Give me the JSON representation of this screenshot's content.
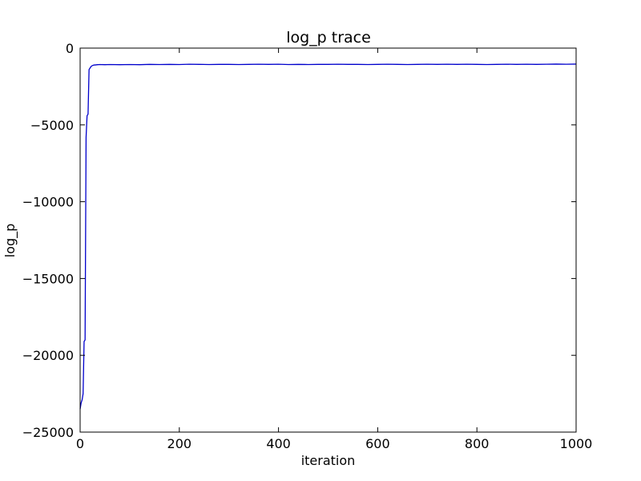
{
  "chart_data": {
    "type": "line",
    "title": "log_p trace",
    "xlabel": "iteration",
    "ylabel": "log_p",
    "xlim": [
      0,
      1000
    ],
    "ylim": [
      -25000,
      0
    ],
    "xticks": [
      0,
      200,
      400,
      600,
      800,
      1000
    ],
    "yticks": [
      0,
      -5000,
      -10000,
      -15000,
      -20000,
      -25000
    ],
    "xtick_labels": [
      "0",
      "200",
      "400",
      "600",
      "800",
      "1000"
    ],
    "ytick_labels": [
      "0",
      "−5000",
      "−10000",
      "−15000",
      "−20000",
      "−25000"
    ],
    "grid": false,
    "series": [
      {
        "color": "#0000cc",
        "x": [
          0,
          2,
          4,
          6,
          8,
          10,
          12,
          14,
          16,
          18,
          20,
          22,
          24,
          26,
          28,
          30,
          35,
          40,
          50,
          60,
          80,
          100,
          120,
          140,
          160,
          180,
          200,
          220,
          240,
          260,
          280,
          300,
          320,
          340,
          360,
          380,
          400,
          420,
          440,
          460,
          480,
          500,
          520,
          540,
          560,
          580,
          600,
          620,
          640,
          660,
          680,
          700,
          720,
          740,
          760,
          780,
          800,
          820,
          840,
          860,
          880,
          900,
          920,
          940,
          960,
          980,
          1000
        ],
        "y": [
          -23500,
          -23100,
          -22900,
          -22500,
          -19100,
          -19000,
          -5800,
          -4400,
          -4300,
          -1400,
          -1300,
          -1200,
          -1150,
          -1120,
          -1100,
          -1100,
          -1080,
          -1070,
          -1080,
          -1070,
          -1080,
          -1070,
          -1080,
          -1060,
          -1070,
          -1060,
          -1070,
          -1050,
          -1060,
          -1070,
          -1060,
          -1060,
          -1070,
          -1060,
          -1050,
          -1060,
          -1050,
          -1070,
          -1060,
          -1070,
          -1060,
          -1060,
          -1050,
          -1060,
          -1060,
          -1070,
          -1060,
          -1050,
          -1060,
          -1070,
          -1060,
          -1050,
          -1060,
          -1050,
          -1060,
          -1050,
          -1060,
          -1070,
          -1060,
          -1050,
          -1060,
          -1050,
          -1060,
          -1050,
          -1040,
          -1050,
          -1040
        ]
      }
    ]
  }
}
